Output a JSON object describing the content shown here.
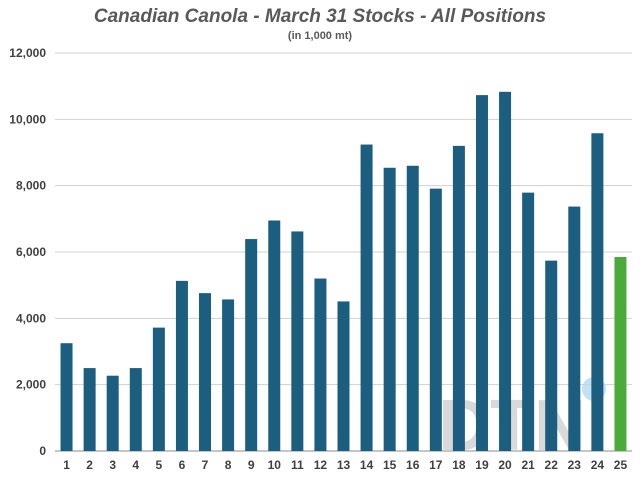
{
  "chart_data": {
    "type": "bar",
    "title": "Canadian Canola - March 31 Stocks - All Positions",
    "subtitle": "(in 1,000 mt)",
    "categories": [
      "1",
      "2",
      "3",
      "4",
      "5",
      "6",
      "7",
      "8",
      "9",
      "10",
      "11",
      "12",
      "13",
      "14",
      "15",
      "16",
      "17",
      "18",
      "19",
      "20",
      "21",
      "22",
      "23",
      "24",
      "25"
    ],
    "values": [
      3250,
      2500,
      2270,
      2500,
      3720,
      5130,
      4760,
      4570,
      6390,
      6950,
      6620,
      5200,
      4510,
      9240,
      8540,
      8600,
      7910,
      9200,
      10730,
      10830,
      7790,
      5740,
      7370,
      9580,
      5850
    ],
    "ylim": [
      0,
      12000
    ],
    "yticks": [
      0,
      2000,
      4000,
      6000,
      8000,
      10000,
      12000
    ],
    "ytick_labels": [
      "0",
      "2,000",
      "4,000",
      "6,000",
      "8,000",
      "10,000",
      "12,000"
    ],
    "grid": true,
    "colors": {
      "bar": "#1b5e7f",
      "highlight": "#4aab3a",
      "grid": "#d0d0d0"
    },
    "highlight_index": 24
  },
  "watermark": {
    "text": "DTN",
    "color": "#d9d9d9",
    "accent": "#a8d4ee"
  }
}
